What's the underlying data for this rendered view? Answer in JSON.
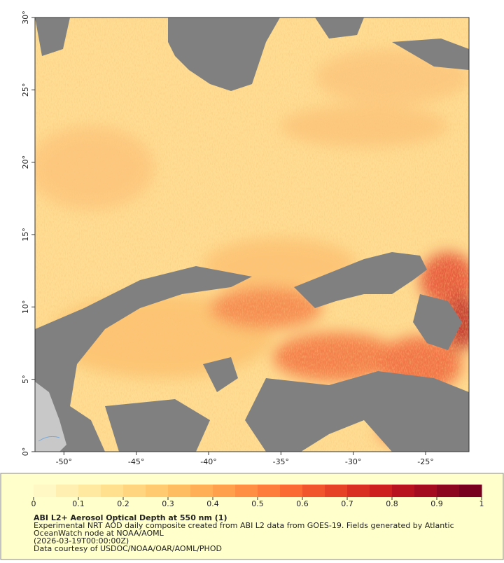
{
  "map": {
    "xlim": [
      -52,
      -22
    ],
    "ylim": [
      0,
      30
    ],
    "xticks": [
      {
        "value": -50,
        "label": "-50°"
      },
      {
        "value": -45,
        "label": "-45°"
      },
      {
        "value": -40,
        "label": "-40°"
      },
      {
        "value": -35,
        "label": "-35°"
      },
      {
        "value": -30,
        "label": "-30°"
      },
      {
        "value": -25,
        "label": "-25°"
      }
    ],
    "yticks": [
      {
        "value": 0,
        "label": "0°"
      },
      {
        "value": 5,
        "label": "5°"
      },
      {
        "value": 10,
        "label": "10°"
      },
      {
        "value": 15,
        "label": "15°"
      },
      {
        "value": 20,
        "label": "20°"
      },
      {
        "value": 25,
        "label": "25°"
      },
      {
        "value": 30,
        "label": "30°"
      }
    ]
  },
  "colorbar": {
    "range": [
      0,
      1
    ],
    "ticks": [
      0,
      0.1,
      0.2,
      0.3,
      0.4,
      0.5,
      0.6,
      0.7,
      0.8,
      0.9,
      1
    ],
    "colors": [
      "#fff7c4",
      "#ffefb0",
      "#ffe8a0",
      "#ffe08e",
      "#ffd580",
      "#ffca70",
      "#ffbd62",
      "#ffb056",
      "#ffa04c",
      "#ff8f42",
      "#ff7d3a",
      "#fb6a32",
      "#f1552b",
      "#e64226",
      "#d92f22",
      "#cc1f1e",
      "#b8121e",
      "#a40b1f",
      "#8c061f",
      "#78001e"
    ]
  },
  "caption": {
    "title": "ABI L2+ Aerosol Optical Depth at 550 nm (1)",
    "lines": [
      "Experimental NRT AOD daily composite created from ABI L2 data from GOES-19. Fields generated by Atlantic",
      "OceanWatch node at NOAA/AOML",
      "(2026-03-19T00:00:00Z)",
      "Data courtesy of USDOC/NOAA/OAR/AOML/PHOD"
    ]
  }
}
